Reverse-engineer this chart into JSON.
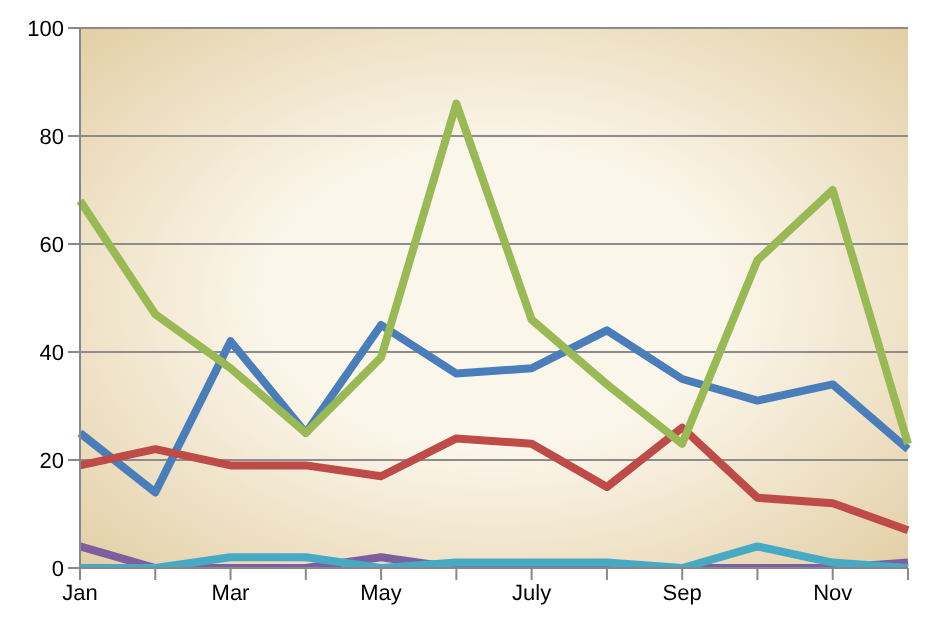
{
  "chart_data": {
    "type": "line",
    "categories": [
      "Jan",
      null,
      "Mar",
      null,
      "May",
      null,
      "July",
      null,
      "Sep",
      null,
      "Nov",
      null
    ],
    "series": [
      {
        "color": "#4a7ebb",
        "values": [
          25,
          14,
          42,
          25,
          45,
          36,
          37,
          44,
          35,
          31,
          34,
          22
        ]
      },
      {
        "color": "#be4b48",
        "values": [
          19,
          22,
          19,
          19,
          17,
          24,
          23,
          15,
          26,
          13,
          12,
          7
        ]
      },
      {
        "color": "#98b954",
        "values": [
          68,
          47,
          37,
          25,
          39,
          86,
          46,
          34,
          23,
          57,
          70,
          23
        ]
      },
      {
        "color": "#7d5fa0",
        "values": [
          4,
          0,
          0,
          0,
          2,
          0,
          0,
          0,
          0,
          0,
          0,
          1
        ]
      },
      {
        "color": "#46aac5",
        "values": [
          0,
          0,
          2,
          2,
          0,
          1,
          1,
          1,
          0,
          4,
          1,
          0
        ]
      }
    ],
    "ylim": [
      0,
      100
    ],
    "yticks": [
      0,
      20,
      40,
      60,
      80,
      100
    ],
    "grid": "y",
    "marker": "none",
    "line_style": "solid"
  }
}
